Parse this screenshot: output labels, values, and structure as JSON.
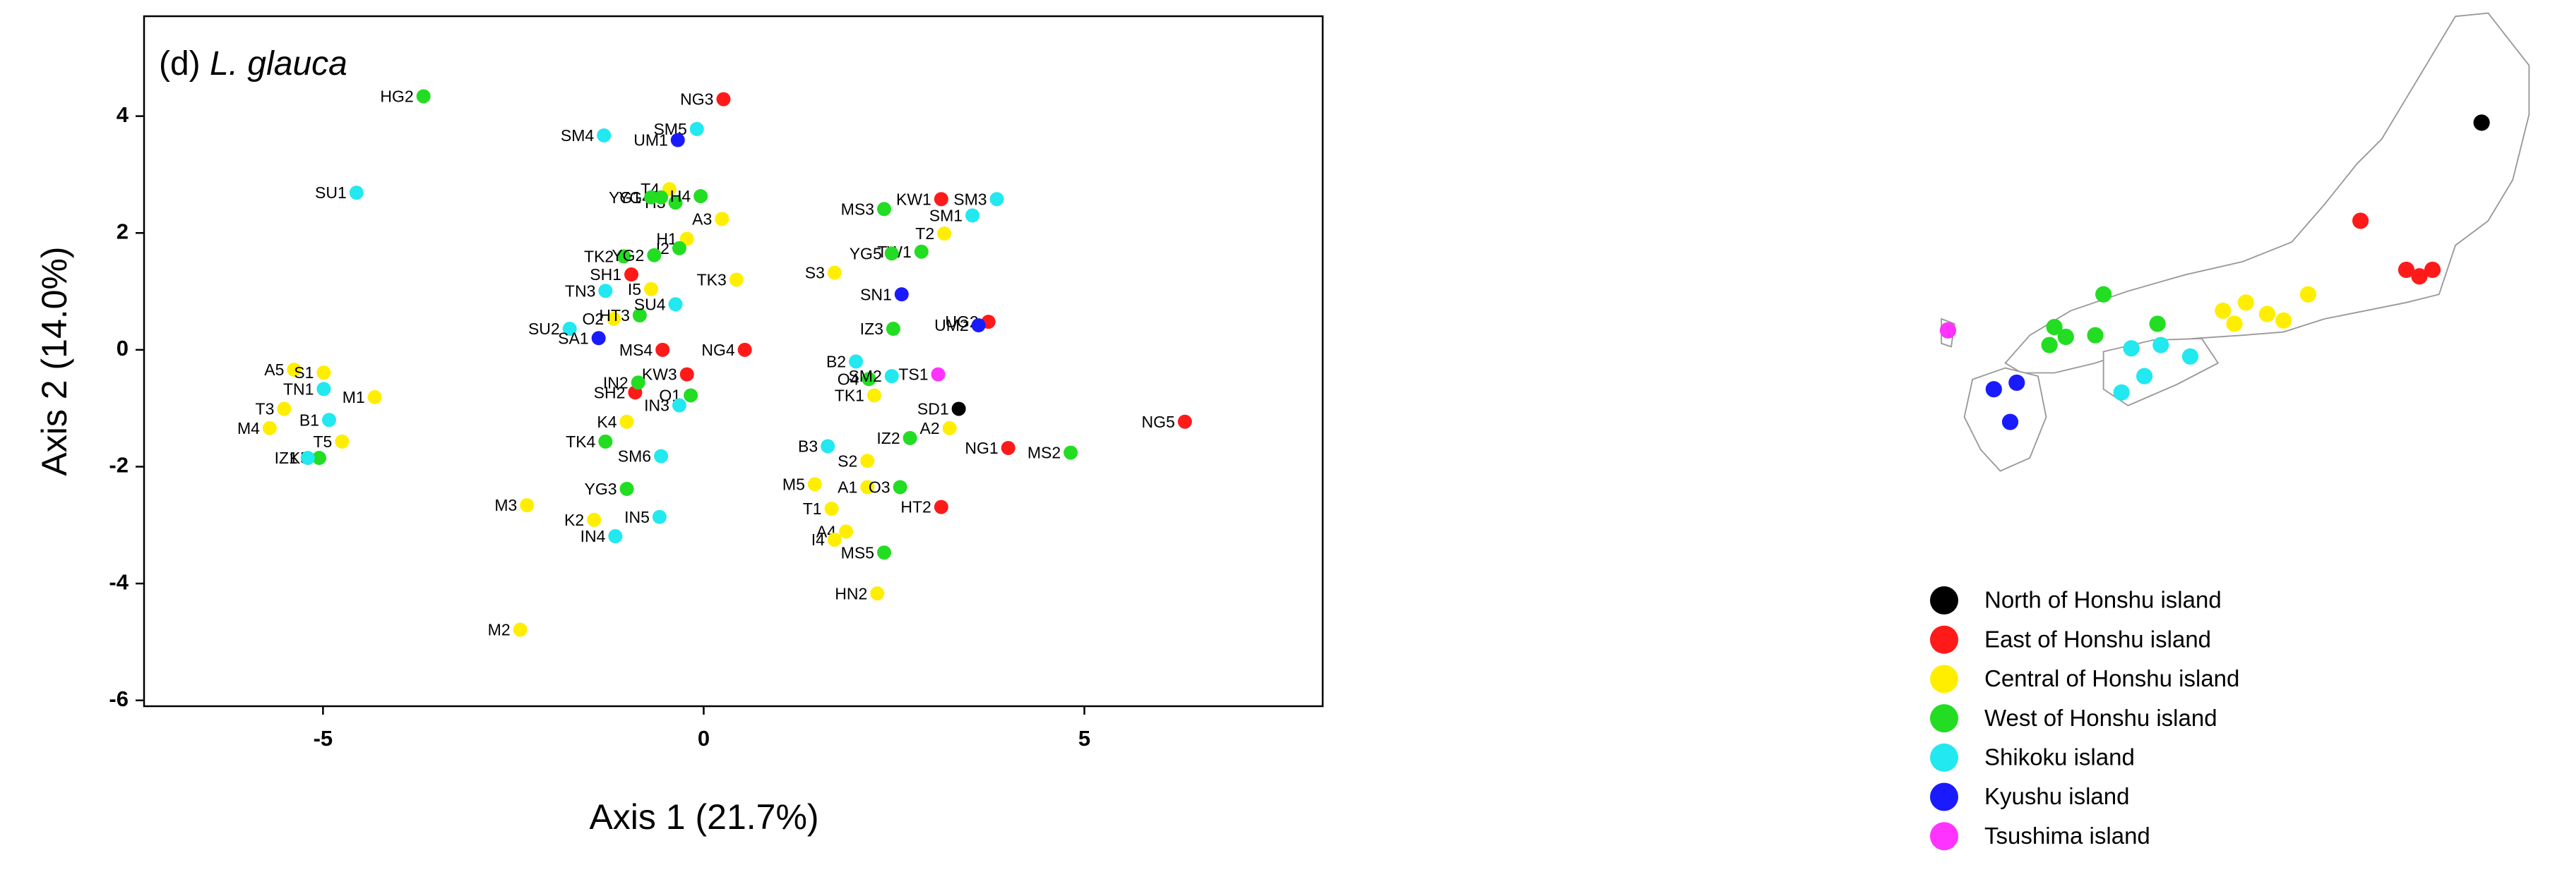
{
  "chart_data": {
    "type": "scatter",
    "panel_label": "(d)",
    "title": "L. glauca",
    "x_label": "Axis 1 (21.7%)",
    "y_label": "Axis 2 (14.0%)",
    "xlim": [
      -7.35,
      8.13
    ],
    "ylim": [
      -6.1,
      5.71
    ],
    "xticks": [
      -5,
      0,
      5
    ],
    "yticks": [
      -6,
      -4,
      -2,
      0,
      2,
      4
    ],
    "grid": false,
    "series": [
      {
        "name": "North of Honshu island",
        "color": "#000000",
        "labels": [
          "SD1"
        ],
        "x": [
          3.35
        ],
        "values": [
          -1.01
        ]
      },
      {
        "name": "East of Honshu island",
        "color": "#ff1a1a",
        "labels": [
          "NG3",
          "KW1",
          "UG2",
          "NG1",
          "NG5",
          "HT2",
          "NG4",
          "SH1",
          "KW3",
          "SH2",
          "MS4"
        ],
        "x": [
          0.26,
          3.12,
          3.74,
          4.0,
          6.32,
          3.12,
          0.54,
          -0.95,
          -0.22,
          -0.9,
          -0.54
        ],
        "values": [
          4.29,
          2.58,
          0.48,
          -1.68,
          -1.23,
          -2.69,
          0.0,
          1.29,
          -0.42,
          -0.73,
          0.0
        ]
      },
      {
        "name": "Central of Honshu island",
        "color": "#ffee00",
        "labels": [
          "T2",
          "S3",
          "TK1",
          "A2",
          "S2",
          "M5",
          "A1",
          "T1",
          "A4",
          "I4",
          "HN2",
          "A5",
          "S1",
          "M1",
          "T3",
          "M4",
          "T5",
          "A3",
          "T4",
          "H1",
          "TK3",
          "I5",
          "O2",
          "K4",
          "M3",
          "K2",
          "M2"
        ],
        "x": [
          3.16,
          1.72,
          2.24,
          3.23,
          2.15,
          1.46,
          2.15,
          1.68,
          1.87,
          1.72,
          2.28,
          -5.38,
          -4.99,
          -4.32,
          -5.51,
          -5.7,
          -4.75,
          0.24,
          -0.45,
          -0.22,
          0.43,
          -0.69,
          -1.18,
          -1.01,
          -2.32,
          -1.44,
          -2.41
        ],
        "values": [
          1.99,
          1.32,
          -0.78,
          -1.34,
          -1.9,
          -2.3,
          -2.35,
          -2.72,
          -3.11,
          -3.25,
          -4.17,
          -0.34,
          -0.39,
          -0.81,
          -1.01,
          -1.34,
          -1.57,
          2.24,
          2.75,
          1.9,
          1.2,
          1.04,
          0.53,
          -1.23,
          -2.66,
          -2.91,
          -4.79
        ]
      },
      {
        "name": "West of Honshu island",
        "color": "#22dd22",
        "labels": [
          "HG2",
          "MS3",
          "TW1",
          "YG5",
          "IZ3",
          "O4",
          "IZ2",
          "MS2",
          "O3",
          "MS5",
          "K5",
          "H3",
          "YG4",
          "H4",
          "YG1",
          "I2",
          "TK2",
          "YG2",
          "HT3",
          "IN2",
          "O1",
          "TK4",
          "YG3"
        ],
        "x": [
          -3.68,
          2.37,
          2.86,
          2.47,
          2.49,
          2.17,
          2.71,
          4.82,
          2.58,
          2.37,
          -5.05,
          -0.37,
          -0.56,
          -0.04,
          -0.69,
          -0.32,
          -1.05,
          -0.65,
          -0.84,
          -0.86,
          -0.17,
          -1.29,
          -1.01
        ],
        "values": [
          4.34,
          2.41,
          1.68,
          1.65,
          0.36,
          -0.5,
          -1.51,
          -1.76,
          -2.35,
          -3.47,
          -1.85,
          2.52,
          2.61,
          2.63,
          2.61,
          1.74,
          1.6,
          1.62,
          0.59,
          -0.56,
          -0.78,
          -1.57,
          -2.38
        ]
      },
      {
        "name": "Shikoku island",
        "color": "#22e8f0",
        "labels": [
          "SM4",
          "SM5",
          "SU1",
          "SM3",
          "SM1",
          "B2",
          "SM2",
          "B3",
          "TN1",
          "B1",
          "IZ1",
          "TN3",
          "SU4",
          "SU2",
          "IN3",
          "SM6",
          "IN5",
          "IN4"
        ],
        "x": [
          -1.31,
          -0.09,
          -4.56,
          3.85,
          3.53,
          2.0,
          2.47,
          1.63,
          -4.99,
          -4.92,
          -5.2,
          -1.29,
          -0.37,
          -1.76,
          -0.32,
          -0.56,
          -0.58,
          -1.16
        ],
        "values": [
          3.67,
          3.78,
          2.69,
          2.58,
          2.3,
          -0.2,
          -0.45,
          -1.65,
          -0.67,
          -1.2,
          -1.85,
          1.01,
          0.78,
          0.36,
          -0.95,
          -1.82,
          -2.86,
          -3.19
        ]
      },
      {
        "name": "Kyushu island",
        "color": "#1a1aff",
        "labels": [
          "UM1",
          "SN1",
          "UM2",
          "SA1"
        ],
        "x": [
          -0.34,
          2.6,
          3.61,
          -1.38
        ],
        "values": [
          3.59,
          0.95,
          0.42,
          0.2
        ]
      },
      {
        "name": "Tsushima island",
        "color": "#ff33ff",
        "labels": [
          "TS1"
        ],
        "x": [
          3.08
        ],
        "values": [
          -0.42
        ]
      }
    ]
  }
}
